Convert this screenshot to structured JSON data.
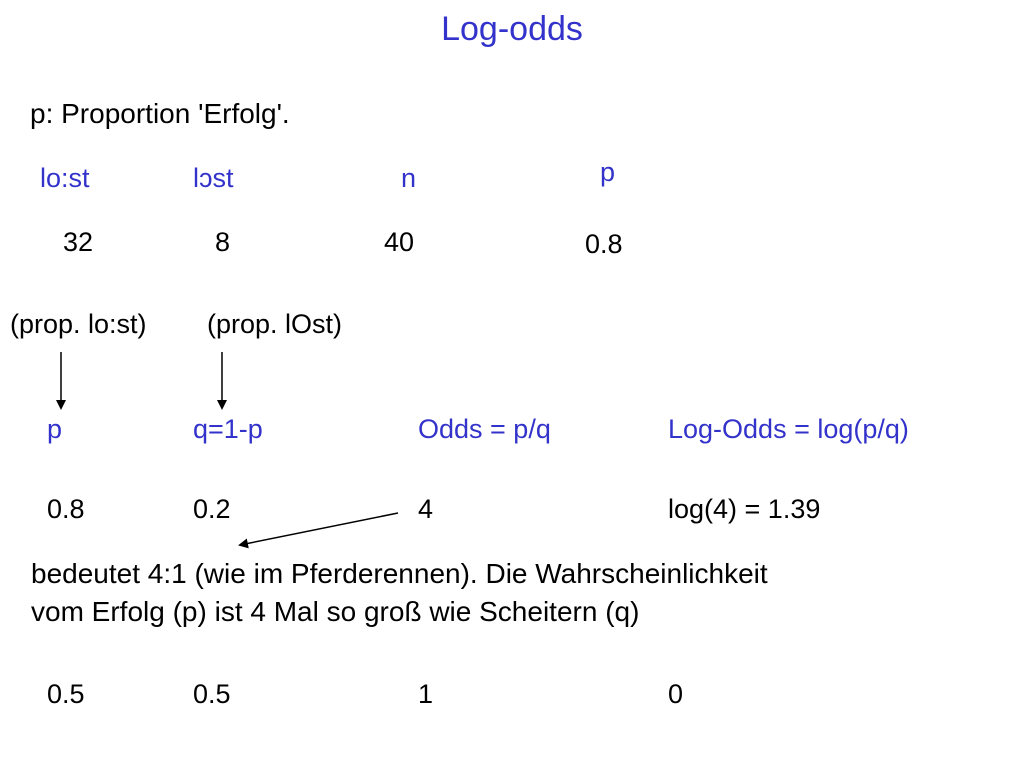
{
  "title": "Log-odds",
  "intro": "p: Proportion 'Erfolg'.",
  "counts": {
    "headers": [
      "lo:st",
      "lɔst",
      "n",
      "p"
    ],
    "values": [
      "32",
      "8",
      "40",
      "0.8"
    ]
  },
  "props": {
    "lo_st": "(prop. lo:st)",
    "lOst": "(prop. lOst)"
  },
  "table": {
    "headers": [
      "p",
      "q=1-p",
      "Odds = p/q",
      "Log-Odds = log(p/q)"
    ],
    "rows": [
      [
        "0.8",
        "0.2",
        "4",
        "log(4) = 1.39"
      ],
      [
        "0.5",
        "0.5",
        "1",
        "0"
      ]
    ]
  },
  "explanation": {
    "line1": "bedeutet 4:1 (wie im Pferderennen). Die Wahrscheinlichkeit",
    "line2": "vom Erfolg (p) ist 4 Mal so groß wie Scheitern (q)"
  },
  "colors": {
    "heading_blue": "#3333cc",
    "text": "#000000"
  }
}
